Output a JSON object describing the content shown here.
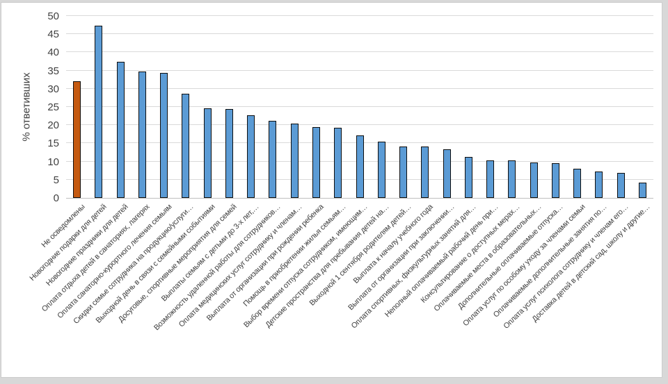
{
  "chart_data": {
    "type": "bar",
    "title": "",
    "xlabel": "",
    "ylabel": "% ответивших",
    "ylim": [
      0,
      50
    ],
    "ytick_step": 5,
    "grid": true,
    "legend": "none",
    "highlight_index": 0,
    "categories": [
      "Не осведомлены",
      "Новогодние подарки для детей",
      "Новогодние праздники для детей",
      "Оплата отдыха детей в санаториях, лагерях",
      "Оплата санаторно-курортного лечения семьям",
      "Скидки семье сотрудника на продукцию/услуги…",
      "Выходной день в связи с семейными событиями",
      "Досуговые, спортивные мероприятия для семей",
      "Выплаты семьям с детьми до 3-х лет,…",
      "Возможность удаленной работы для сотрудников…",
      "Оплата медицинских услуг сотруднику и членам…",
      "Выплата от организации при рождении ребенка",
      "Помощь в приобретении жилья семьям…",
      "Выбор времени отпуска сотрудником, имеющим…",
      "Детские пространства для пребывания детей на…",
      "Выходной 1 сентября родителям детей…",
      "Выплата к началу учебного года",
      "Выплата от организации при заключении…",
      "Оплата спортивных, физкультурных занятий для…",
      "Неполный оплачиваемый рабочий день при…",
      "Консультирование о доступных мерах…",
      "Оплачиваемые места в образовательных…",
      "Дополнительные оплачиваемые отпуска…",
      "Оплата услуг по особому уходу за членами семьи",
      "Оплачиваемые дополнительные занятия по…",
      "Оплата услуг психолога сотруднику и членам его…",
      "Доставка детей в детский сад, школу и другие…"
    ],
    "values": [
      32.1,
      47.3,
      37.5,
      34.7,
      34.3,
      28.7,
      24.6,
      24.5,
      22.7,
      21.2,
      20.5,
      19.4,
      19.3,
      17.1,
      15.4,
      14.2,
      14.1,
      13.4,
      11.3,
      10.4,
      10.4,
      9.8,
      9.6,
      8.0,
      7.2,
      6.8,
      4.2
    ]
  },
  "colors": {
    "bar_fill": "#5b9bd5",
    "bar_highlight_fill": "#c55a11",
    "bar_border": "#0d0d0d",
    "gridline": "#d9d9d9",
    "axis_line": "#bfbfbf",
    "text": "#404040"
  }
}
